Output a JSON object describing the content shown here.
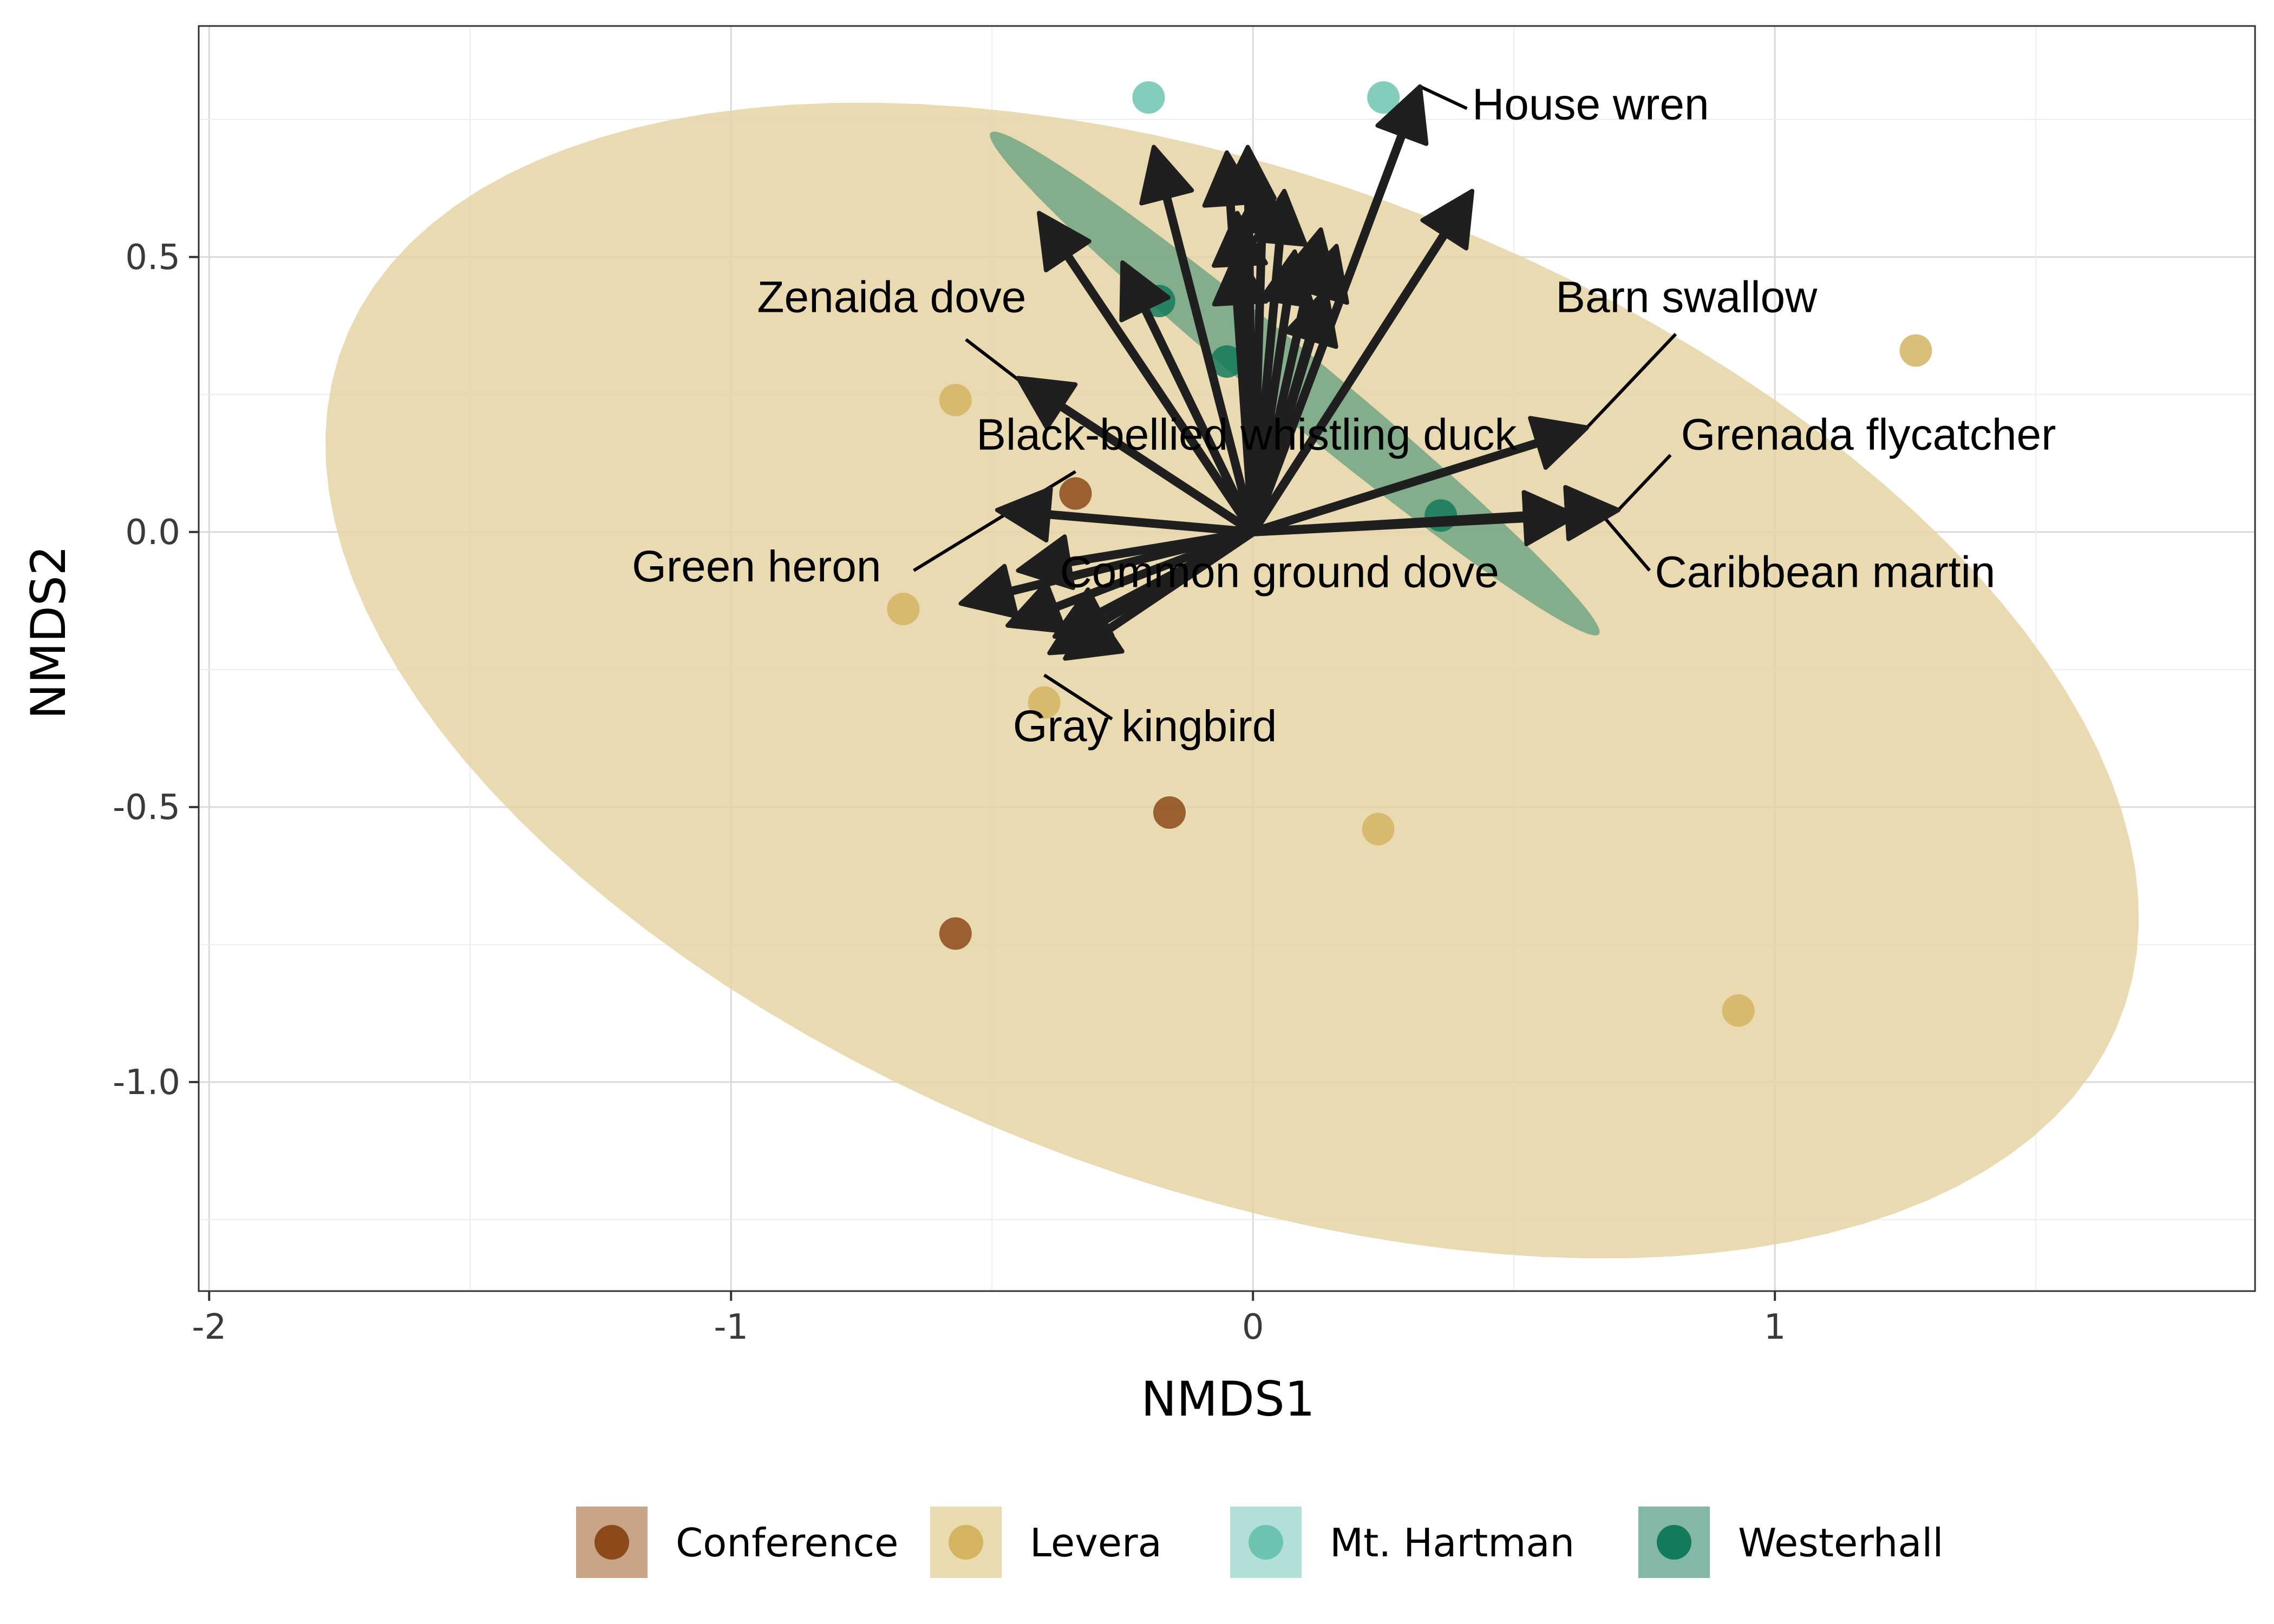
{
  "chart_data": {
    "type": "scatter",
    "xlabel": "NMDS1",
    "ylabel": "NMDS2",
    "xlim": [
      -2.02,
      1.92
    ],
    "ylim": [
      -1.38,
      0.92
    ],
    "x_ticks": [
      {
        "value": -2,
        "label": "-2"
      },
      {
        "value": -1,
        "label": "-1"
      },
      {
        "value": 0,
        "label": "0"
      },
      {
        "value": 1,
        "label": "1"
      }
    ],
    "y_ticks": [
      {
        "value": 0.5,
        "label": "0.5"
      },
      {
        "value": 0.0,
        "label": "0.0"
      },
      {
        "value": -0.5,
        "label": "-0.5"
      },
      {
        "value": -1.0,
        "label": "-1.0"
      }
    ],
    "grid": true,
    "legend_position": "bottom",
    "colors": {
      "Conference": "#8c4a1a",
      "Levera": "#d4b461",
      "Mt. Hartman": "#6cc4b0",
      "Westerhall": "#137a5c",
      "arrow": "#1f1f1f"
    },
    "legend": [
      {
        "name": "Conference",
        "color": "#8c4a1a",
        "fill": "#c9a587"
      },
      {
        "name": "Levera",
        "color": "#d4b461",
        "fill": "#eadab0"
      },
      {
        "name": "Mt. Hartman",
        "color": "#6cc4b0",
        "fill": "#b3e0d6"
      },
      {
        "name": "Westerhall",
        "color": "#137a5c",
        "fill": "#84b8a6"
      }
    ],
    "ellipses": [
      {
        "group": "Levera",
        "center": [
          -0.04,
          -0.27
        ],
        "rx": 1.81,
        "ry": 0.92,
        "angle_deg": -19,
        "fill": "#e5d3a3",
        "opacity": 0.85
      },
      {
        "group": "Westerhall",
        "center": [
          0.08,
          0.27
        ],
        "rx": 0.74,
        "ry": 0.06,
        "angle_deg": -38,
        "fill": "#4e9677",
        "opacity": 0.65
      }
    ],
    "points": [
      {
        "group": "Mt. Hartman",
        "x": -0.2,
        "y": 0.79
      },
      {
        "group": "Mt. Hartman",
        "x": 0.25,
        "y": 0.79
      },
      {
        "group": "Westerhall",
        "x": -0.18,
        "y": 0.42
      },
      {
        "group": "Westerhall",
        "x": -0.05,
        "y": 0.31
      },
      {
        "group": "Westerhall",
        "x": 0.36,
        "y": 0.03
      },
      {
        "group": "Levera",
        "x": -0.57,
        "y": 0.24
      },
      {
        "group": "Levera",
        "x": 1.27,
        "y": 0.33
      },
      {
        "group": "Levera",
        "x": -0.67,
        "y": -0.14
      },
      {
        "group": "Levera",
        "x": -0.4,
        "y": -0.31
      },
      {
        "group": "Levera",
        "x": 0.24,
        "y": -0.54
      },
      {
        "group": "Levera",
        "x": 0.93,
        "y": -0.87
      },
      {
        "group": "Conference",
        "x": -0.34,
        "y": 0.07
      },
      {
        "group": "Conference",
        "x": -0.16,
        "y": -0.51
      },
      {
        "group": "Conference",
        "x": -0.57,
        "y": -0.73
      }
    ],
    "arrows": [
      {
        "x": 0.32,
        "y": 0.81
      },
      {
        "x": -0.19,
        "y": 0.7
      },
      {
        "x": -0.05,
        "y": 0.69
      },
      {
        "x": -0.01,
        "y": 0.7
      },
      {
        "x": 0.02,
        "y": 0.64
      },
      {
        "x": 0.06,
        "y": 0.62
      },
      {
        "x": -0.03,
        "y": 0.58
      },
      {
        "x": 0.42,
        "y": 0.62
      },
      {
        "x": -0.41,
        "y": 0.58
      },
      {
        "x": 0.13,
        "y": 0.55
      },
      {
        "x": 0.08,
        "y": 0.51
      },
      {
        "x": -0.03,
        "y": 0.51
      },
      {
        "x": 0.16,
        "y": 0.52
      },
      {
        "x": -0.25,
        "y": 0.49
      },
      {
        "x": 0.14,
        "y": 0.44
      },
      {
        "x": -0.45,
        "y": 0.28
      },
      {
        "x": 0.64,
        "y": 0.19
      },
      {
        "x": -0.49,
        "y": 0.04
      },
      {
        "x": 0.62,
        "y": 0.03
      },
      {
        "x": 0.7,
        "y": 0.04
      },
      {
        "x": -0.45,
        "y": -0.07
      },
      {
        "x": -0.56,
        "y": -0.13
      },
      {
        "x": -0.47,
        "y": -0.17
      },
      {
        "x": -0.38,
        "y": -0.19
      },
      {
        "x": -0.39,
        "y": -0.22
      },
      {
        "x": -0.36,
        "y": -0.23
      }
    ],
    "labels": [
      {
        "text": "House wren",
        "x": 0.42,
        "y": 0.75,
        "anchor": "start",
        "leader": [
          [
            0.32,
            0.81
          ],
          [
            0.41,
            0.77
          ]
        ]
      },
      {
        "text": "Zenaida dove",
        "x": -0.95,
        "y": 0.4,
        "anchor": "start",
        "leader": [
          [
            -0.55,
            0.35
          ],
          [
            -0.44,
            0.27
          ]
        ]
      },
      {
        "text": "Barn swallow",
        "x": 0.58,
        "y": 0.4,
        "anchor": "start",
        "leader": [
          [
            0.81,
            0.36
          ],
          [
            0.64,
            0.19
          ]
        ]
      },
      {
        "text": "Black-bellied whistling duck",
        "x": -0.53,
        "y": 0.15,
        "anchor": "start",
        "leader": null
      },
      {
        "text": "Grenada flycatcher",
        "x": 0.82,
        "y": 0.15,
        "anchor": "start",
        "leader": [
          [
            0.8,
            0.14
          ],
          [
            0.7,
            0.04
          ]
        ]
      },
      {
        "text": "Green heron",
        "x": -1.19,
        "y": -0.09,
        "anchor": "start",
        "leader": [
          [
            -0.65,
            -0.07
          ],
          [
            -0.34,
            0.11
          ]
        ]
      },
      {
        "text": "Common ground dove",
        "x": -0.37,
        "y": -0.1,
        "anchor": "start",
        "leader": null
      },
      {
        "text": "Caribbean martin",
        "x": 0.77,
        "y": -0.1,
        "anchor": "start",
        "leader": [
          [
            0.76,
            -0.07
          ],
          [
            0.67,
            0.03
          ]
        ]
      },
      {
        "text": "Gray kingbird",
        "x": -0.46,
        "y": -0.38,
        "anchor": "start",
        "leader": [
          [
            -0.27,
            -0.34
          ],
          [
            -0.4,
            -0.26
          ]
        ]
      }
    ]
  }
}
